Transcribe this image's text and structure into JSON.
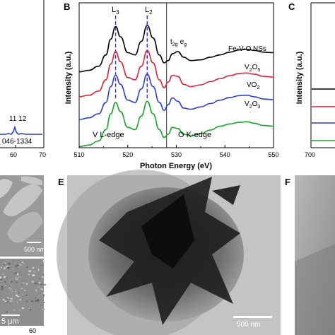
{
  "panels": {
    "A": {
      "peak_label": "11 12",
      "ref_label": "046-1334",
      "ticks": [
        "60",
        "70"
      ],
      "colors": {
        "line": "#2b3fd1"
      }
    },
    "B": {
      "letter": "B",
      "edge_labels": {
        "V": "V L-edge",
        "O": "O K-edge"
      },
      "peak_labels": {
        "L3": "L",
        "L3_sub": "3",
        "L2": "L",
        "L2_sub": "2",
        "t2g": "t",
        "t2g_sub": "2g",
        "eg": "e",
        "eg_sub": "g"
      }
    },
    "C": {
      "letter": "C",
      "ylabel": "Intensity (a.u.)",
      "tick": "700",
      "colors": [
        "#000000",
        "#d9253a",
        "#2b3fd1",
        "#1aa32a"
      ]
    },
    "D": {
      "scalebar_top": "500 nm",
      "scalebar_bottom": "5 μm",
      "ticks": [
        "60"
      ]
    },
    "E": {
      "letter": "E",
      "scalebar": "500 nm"
    },
    "F": {
      "letter": "F"
    }
  },
  "chart_data": {
    "type": "line",
    "panel": "B",
    "xlabel": "Photon Energy (eV)",
    "ylabel": "Intensity (a.u.)",
    "xlim": [
      510,
      550
    ],
    "xticks": [
      "510",
      "520",
      "530",
      "540",
      "550"
    ],
    "ylim": [
      0,
      6.4
    ],
    "grid": false,
    "legend": "inline-right",
    "vline": 528,
    "dashed_markers": [
      517.5,
      524
    ],
    "series": [
      {
        "name": "Fe-V-O NSs",
        "color": "#000000",
        "offset": 3.3,
        "x": [
          510,
          512,
          514,
          515.5,
          516.5,
          517.5,
          518.5,
          520,
          521.5,
          522.8,
          524,
          525.2,
          526.5,
          527.5,
          528.3,
          529.2,
          530.3,
          531.5,
          533,
          535,
          537,
          539,
          541,
          543,
          544.5,
          546,
          548,
          550
        ],
        "y": [
          0.05,
          0.12,
          0.3,
          0.8,
          1.5,
          2.05,
          1.6,
          0.9,
          0.8,
          1.4,
          2.1,
          1.55,
          0.8,
          0.45,
          0.55,
          0.85,
          0.95,
          0.7,
          0.55,
          0.58,
          0.7,
          0.8,
          0.92,
          1.02,
          1.05,
          1.0,
          0.92,
          0.9
        ]
      },
      {
        "name": "V2O5",
        "label_main": "V",
        "label_sub1": "2",
        "label_mid": "O",
        "label_sub2": "5",
        "color": "#d9253a",
        "offset": 2.2,
        "x": [
          510,
          512,
          514,
          515.5,
          516.5,
          517.5,
          518.5,
          520,
          521.5,
          522.8,
          524,
          525.2,
          526.5,
          527.5,
          528.3,
          529.2,
          530.3,
          531.5,
          533,
          535,
          537,
          539,
          541,
          543,
          544.5,
          546,
          548,
          550
        ],
        "y": [
          0.05,
          0.12,
          0.3,
          0.8,
          1.5,
          2.05,
          1.6,
          0.9,
          0.8,
          1.4,
          2.1,
          1.55,
          0.8,
          0.45,
          0.7,
          1.0,
          0.95,
          0.6,
          0.5,
          0.58,
          0.72,
          0.85,
          0.98,
          1.08,
          1.1,
          1.05,
          0.95,
          0.92
        ]
      },
      {
        "name": "VO2",
        "label_main": "VO",
        "label_sub1": "2",
        "color": "#2b3fd1",
        "offset": 1.2,
        "x": [
          510,
          512,
          514,
          515.5,
          516.5,
          517.5,
          518.5,
          520,
          521.5,
          522.8,
          524,
          525.2,
          526.5,
          527.5,
          528.3,
          529.2,
          530.3,
          531.5,
          533,
          535,
          537,
          539,
          541,
          543,
          544.5,
          546,
          548,
          550
        ],
        "y": [
          0.05,
          0.12,
          0.3,
          0.8,
          1.5,
          2.0,
          1.6,
          0.9,
          0.8,
          1.4,
          2.05,
          1.5,
          0.8,
          0.45,
          0.7,
          1.0,
          0.85,
          0.55,
          0.5,
          0.6,
          0.75,
          0.9,
          1.02,
          1.1,
          1.12,
          1.05,
          0.95,
          0.92
        ]
      },
      {
        "name": "V2O3",
        "label_main": "V",
        "label_sub1": "2",
        "label_mid": "O",
        "label_sub2": "3",
        "color": "#1aa32a",
        "offset": 0.0,
        "x": [
          510,
          512,
          514,
          515.5,
          516.5,
          517.5,
          518.5,
          520,
          521.5,
          522.8,
          524,
          525.2,
          526.5,
          527.5,
          528.3,
          529.2,
          530.3,
          531.5,
          533,
          535,
          537,
          539,
          541,
          543,
          544.5,
          546,
          548,
          550
        ],
        "y": [
          0.05,
          0.12,
          0.3,
          0.8,
          1.5,
          2.0,
          1.6,
          0.9,
          0.8,
          1.4,
          2.05,
          1.5,
          0.8,
          0.45,
          0.6,
          0.9,
          0.85,
          0.6,
          0.52,
          0.62,
          0.78,
          0.95,
          1.05,
          1.12,
          1.15,
          1.08,
          0.98,
          0.95
        ]
      }
    ]
  }
}
